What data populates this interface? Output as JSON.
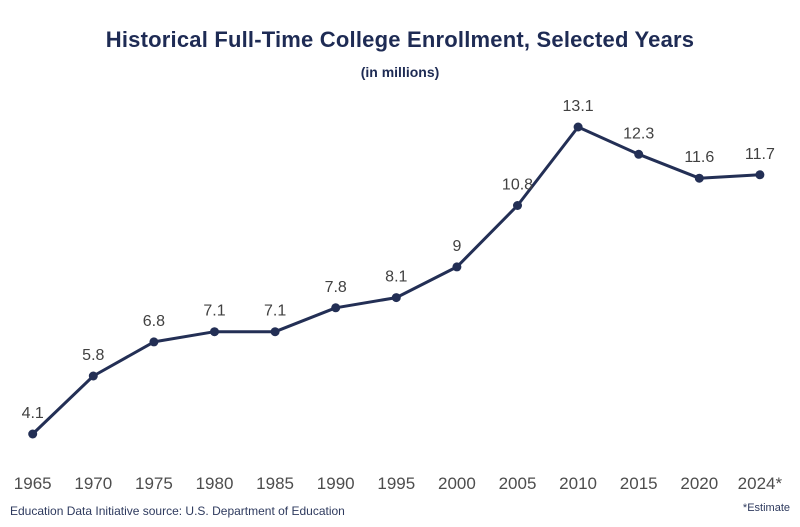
{
  "chart_data": {
    "type": "line",
    "title": "Historical Full-Time College Enrollment, Selected Years",
    "subtitle": "(in millions)",
    "categories": [
      "1965",
      "1970",
      "1975",
      "1980",
      "1985",
      "1990",
      "1995",
      "2000",
      "2005",
      "2010",
      "2015",
      "2020",
      "2024*"
    ],
    "values": [
      4.1,
      5.8,
      6.8,
      7.1,
      7.1,
      7.8,
      8.1,
      9,
      10.8,
      13.1,
      12.3,
      11.6,
      11.7
    ],
    "point_labels": [
      "4.1",
      "5.8",
      "6.8",
      "7.1",
      "7.1",
      "7.8",
      "8.1",
      "9",
      "10.8",
      "13.1",
      "12.3",
      "11.6",
      "11.7"
    ],
    "xlabel": "",
    "ylabel": "",
    "value_range": [
      4.1,
      13.1
    ],
    "layout": {
      "grid": false,
      "axis_lines": false,
      "legend": "none",
      "point_labels_position": "above"
    }
  },
  "footer": {
    "source": "Education Data Initiative source: U.S. Department of Education",
    "estimate_note": "*Estimate"
  },
  "colors": {
    "title": "#1e2b54",
    "line": "#232f55",
    "marker": "#232f55",
    "point_label": "#414141",
    "axis_label": "#4d4d4d",
    "footer": "#2e3a5e",
    "background": "#ffffff"
  }
}
